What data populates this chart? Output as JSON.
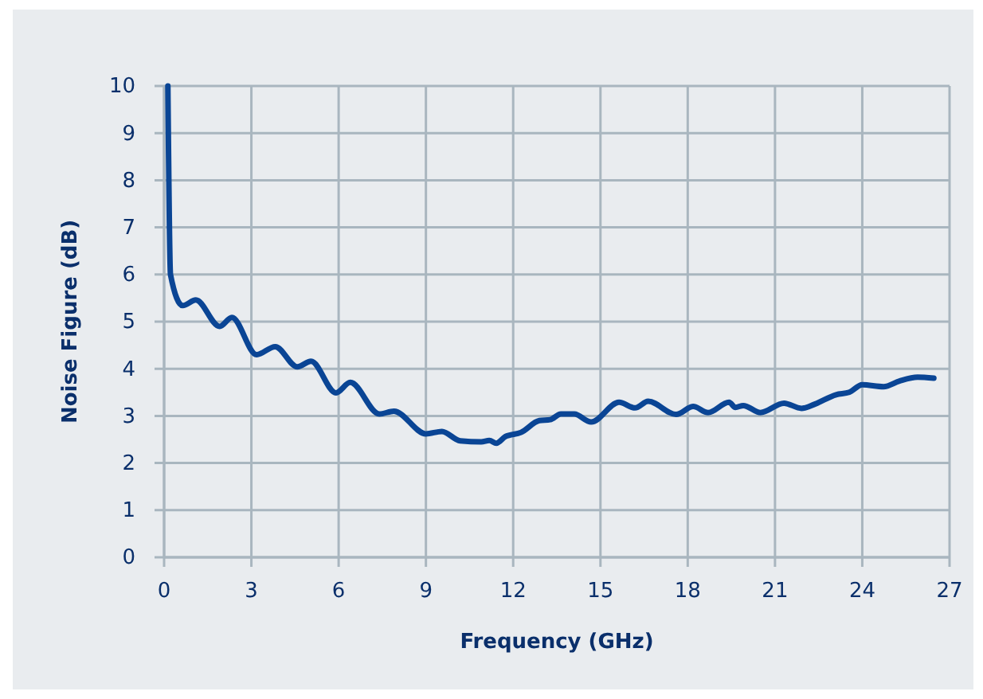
{
  "chart_data": {
    "type": "line",
    "xlabel": "Frequency (GHz)",
    "ylabel": "Noise Figure (dB)",
    "xlim": [
      0,
      27
    ],
    "xticks": [
      0,
      3,
      6,
      9,
      12,
      15,
      18,
      21,
      24,
      27
    ],
    "ylim": [
      0,
      10
    ],
    "yticks": [
      0,
      1,
      2,
      3,
      4,
      5,
      6,
      7,
      8,
      9,
      10
    ],
    "grid": true,
    "series": [
      {
        "color": "#0a4595",
        "x": [
          0.13,
          0.22,
          0.64,
          1.09,
          1.91,
          2.33,
          3.18,
          3.82,
          4.58,
          5.05,
          5.91,
          6.4,
          7.4,
          7.9,
          9.0,
          9.55,
          10.18,
          10.9,
          11.18,
          11.42,
          11.73,
          12.27,
          12.9,
          13.27,
          13.64,
          14.1,
          14.68,
          15.64,
          16.19,
          16.64,
          17.6,
          18.19,
          18.7,
          19.42,
          19.64,
          19.91,
          20.5,
          21.31,
          21.91,
          22.37,
          23.1,
          23.55,
          24.0,
          24.73,
          25.28,
          25.9,
          26.46
        ],
        "values": [
          10,
          6.0,
          5.34,
          5.46,
          4.9,
          5.09,
          4.3,
          4.47,
          4.04,
          4.16,
          3.49,
          3.71,
          3.04,
          3.1,
          2.62,
          2.67,
          2.47,
          2.45,
          2.48,
          2.42,
          2.56,
          2.65,
          2.9,
          2.92,
          3.04,
          3.04,
          2.87,
          3.29,
          3.17,
          3.31,
          3.03,
          3.2,
          3.07,
          3.29,
          3.18,
          3.22,
          3.07,
          3.27,
          3.16,
          3.25,
          3.45,
          3.5,
          3.66,
          3.62,
          3.74,
          3.82,
          3.8
        ]
      }
    ]
  }
}
